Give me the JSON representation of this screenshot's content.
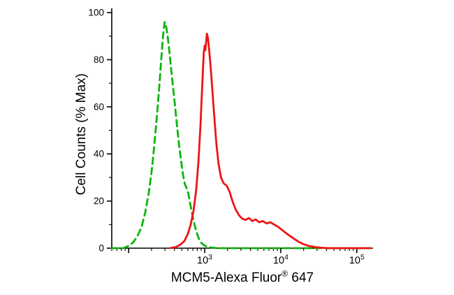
{
  "figure": {
    "background": "#ffffff",
    "axis_color": "#000000"
  },
  "chart_data": {
    "type": "line",
    "subtype": "flow-cytometry-histogram-overlay",
    "title": "",
    "ylabel": "Cell Counts (% Max)",
    "xlabel": {
      "main": "MCM5-Alexa Fluor",
      "sup": "®",
      "suffix": " 647"
    },
    "x_scale": "log",
    "y_scale": "linear",
    "xlim": [
      60,
      150000
    ],
    "ylim": [
      0,
      100
    ],
    "grid": false,
    "legend": "none",
    "axis_color": "#000000",
    "x_major_ticks": [
      {
        "value": 100,
        "label_base": "",
        "label_exp": ""
      },
      {
        "value": 1000,
        "label_base": "10",
        "label_exp": "3"
      },
      {
        "value": 10000,
        "label_base": "10",
        "label_exp": "4"
      },
      {
        "value": 100000,
        "label_base": "10",
        "label_exp": "5"
      }
    ],
    "y_major_ticks": [
      0,
      20,
      40,
      60,
      80,
      100
    ],
    "y_minor_step": 10,
    "series": [
      {
        "name": "green-dashed",
        "color": "#0ab50a",
        "line_style": "dashed",
        "line_width": 2.8,
        "peak": {
          "x": 298,
          "y": 96
        },
        "points": [
          [
            60,
            0
          ],
          [
            85,
            0
          ],
          [
            100,
            1
          ],
          [
            115,
            2.5
          ],
          [
            130,
            5
          ],
          [
            148,
            9
          ],
          [
            165,
            15
          ],
          [
            183,
            23
          ],
          [
            200,
            32
          ],
          [
            218,
            44
          ],
          [
            235,
            56
          ],
          [
            252,
            68
          ],
          [
            268,
            80
          ],
          [
            283,
            90
          ],
          [
            298,
            96
          ],
          [
            312,
            94
          ],
          [
            326,
            90
          ],
          [
            342,
            84
          ],
          [
            360,
            77
          ],
          [
            382,
            69
          ],
          [
            406,
            61
          ],
          [
            432,
            52
          ],
          [
            460,
            44
          ],
          [
            490,
            37
          ],
          [
            520,
            31
          ],
          [
            550,
            27
          ],
          [
            580,
            25.5
          ],
          [
            612,
            23
          ],
          [
            648,
            18.5
          ],
          [
            690,
            14
          ],
          [
            735,
            10
          ],
          [
            785,
            6.5
          ],
          [
            840,
            4
          ],
          [
            905,
            2.2
          ],
          [
            985,
            1.2
          ],
          [
            1090,
            0.6
          ],
          [
            1250,
            0.2
          ],
          [
            1500,
            0
          ],
          [
            150000,
            0
          ]
        ]
      },
      {
        "name": "red-solid",
        "color": "#ee1414",
        "line_style": "solid",
        "line_width": 2.8,
        "peak": {
          "x": 1070,
          "y": 91
        },
        "points": [
          [
            350,
            0
          ],
          [
            420,
            0.5
          ],
          [
            480,
            1.5
          ],
          [
            540,
            3
          ],
          [
            600,
            6
          ],
          [
            655,
            10
          ],
          [
            715,
            16
          ],
          [
            775,
            25
          ],
          [
            830,
            37
          ],
          [
            880,
            52
          ],
          [
            920,
            66
          ],
          [
            950,
            76
          ],
          [
            975,
            83
          ],
          [
            1000,
            86
          ],
          [
            1020,
            84
          ],
          [
            1045,
            87.5
          ],
          [
            1070,
            91
          ],
          [
            1100,
            89.5
          ],
          [
            1140,
            85
          ],
          [
            1190,
            78
          ],
          [
            1250,
            69
          ],
          [
            1330,
            57
          ],
          [
            1420,
            45
          ],
          [
            1520,
            36
          ],
          [
            1640,
            30
          ],
          [
            1780,
            27.5
          ],
          [
            1950,
            26.5
          ],
          [
            2120,
            24
          ],
          [
            2320,
            20
          ],
          [
            2550,
            16.5
          ],
          [
            2820,
            14
          ],
          [
            3120,
            12.5
          ],
          [
            3450,
            12
          ],
          [
            3820,
            12.8
          ],
          [
            4220,
            11.5
          ],
          [
            4680,
            12.2
          ],
          [
            5200,
            11
          ],
          [
            5800,
            11.5
          ],
          [
            6500,
            10.5
          ],
          [
            7300,
            11
          ],
          [
            8200,
            10
          ],
          [
            9300,
            9
          ],
          [
            10600,
            7.5
          ],
          [
            12200,
            6
          ],
          [
            14200,
            4.5
          ],
          [
            16600,
            3
          ],
          [
            19500,
            1.8
          ],
          [
            23000,
            1
          ],
          [
            27500,
            0.5
          ],
          [
            33000,
            0.2
          ],
          [
            42000,
            0
          ],
          [
            150000,
            0
          ]
        ]
      }
    ]
  }
}
